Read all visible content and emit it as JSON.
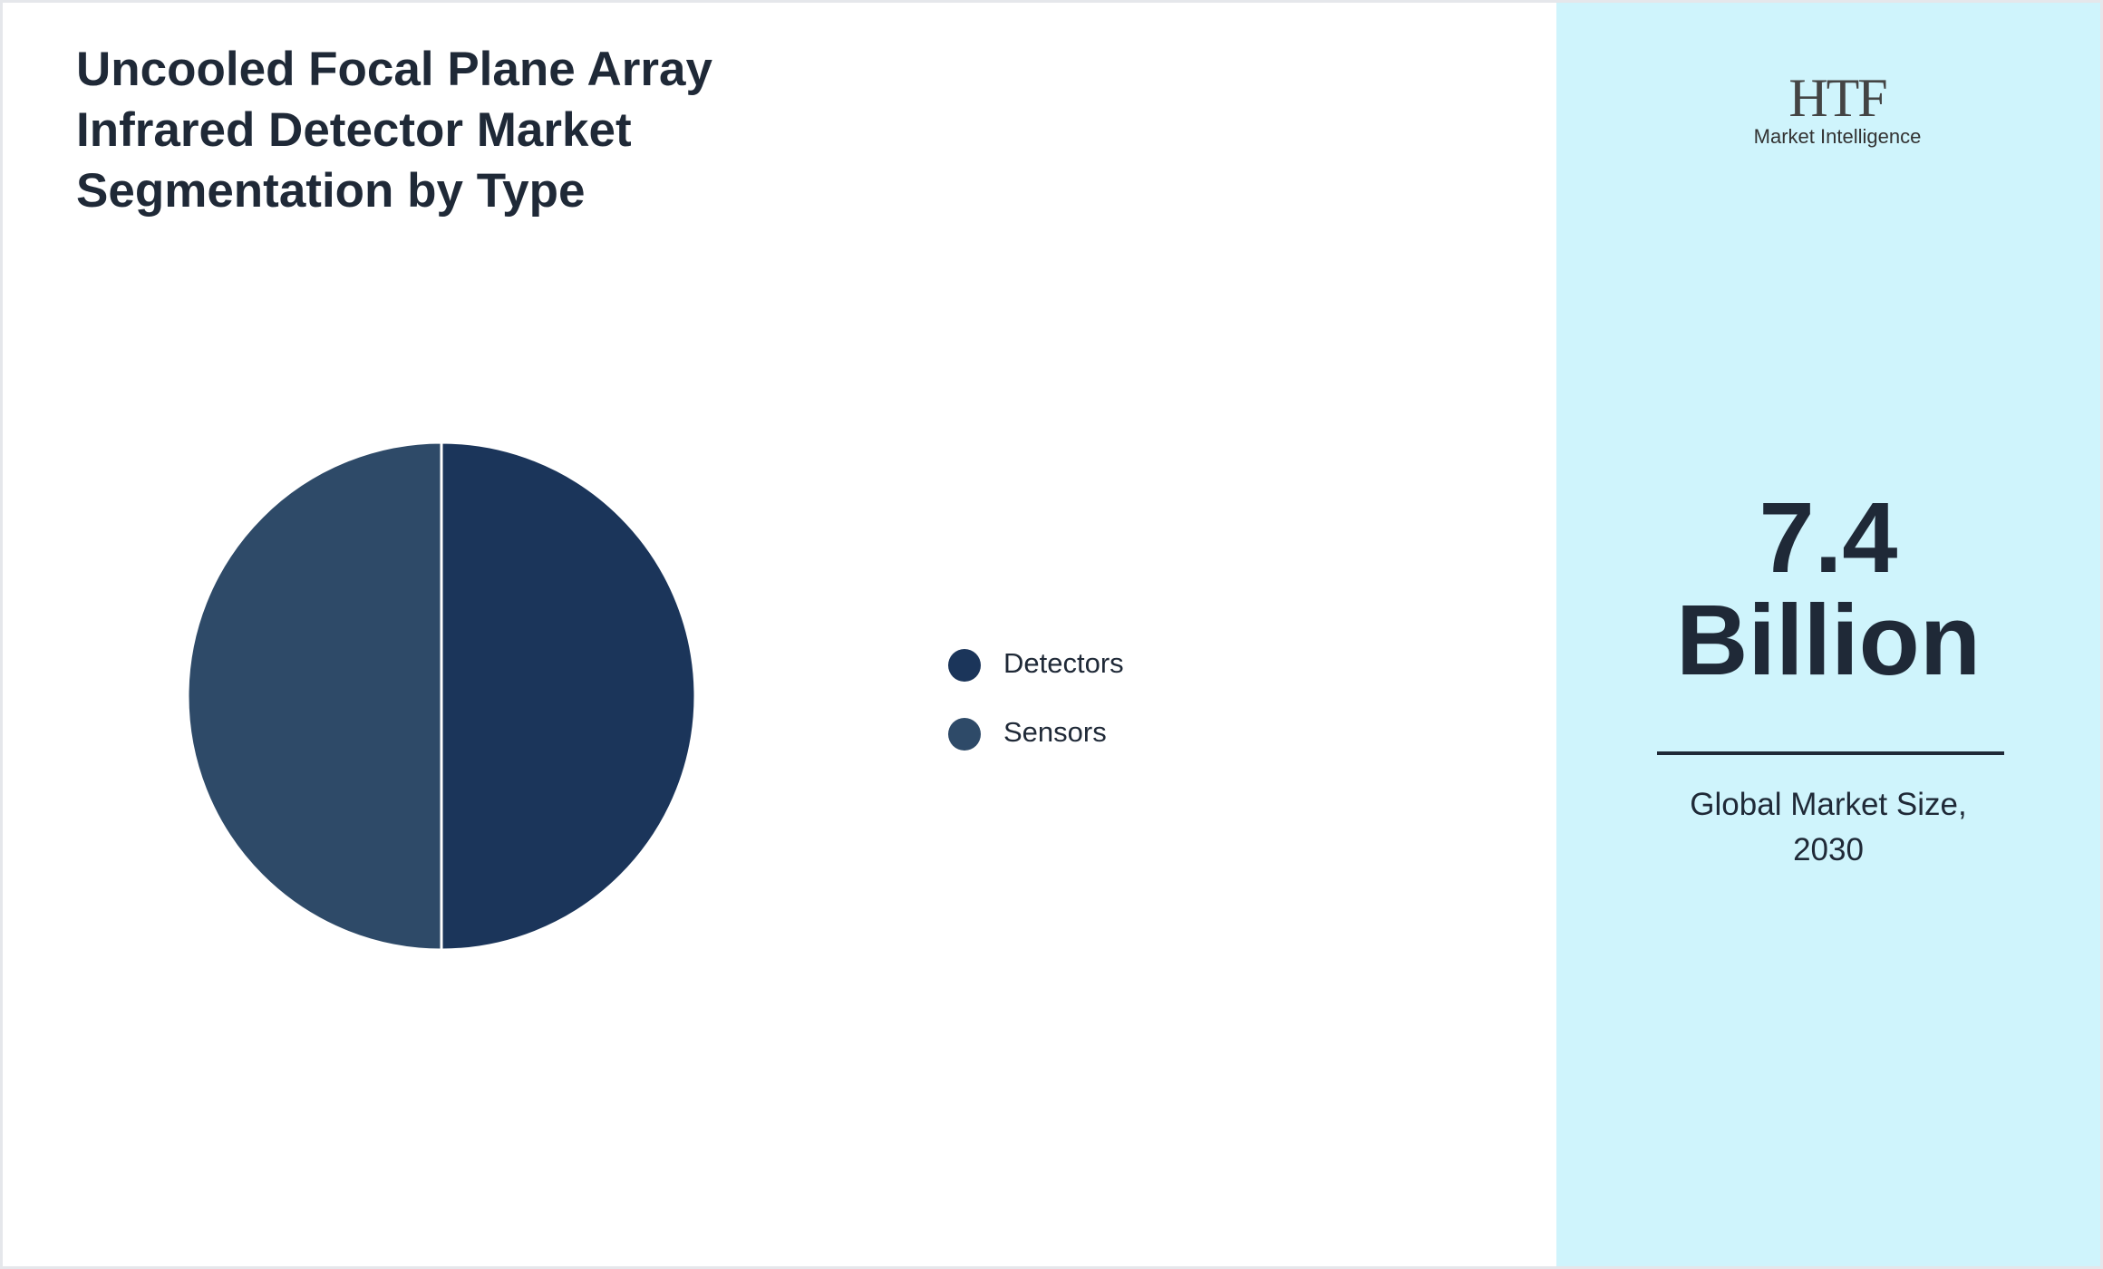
{
  "chart_data": {
    "type": "pie",
    "title": "Uncooled Focal Plane Array Infrared Detector Market Segmentation by Type",
    "categories": [
      "Detectors",
      "Sensors"
    ],
    "values": [
      50,
      50
    ],
    "colors": [
      "#1b355a",
      "#2e4a68"
    ]
  },
  "logo": {
    "brand": "HTF",
    "tagline": "Market Intelligence"
  },
  "kpi": {
    "value": 7.4,
    "unit": "Billion",
    "label": "Global Market Size, 2030"
  }
}
